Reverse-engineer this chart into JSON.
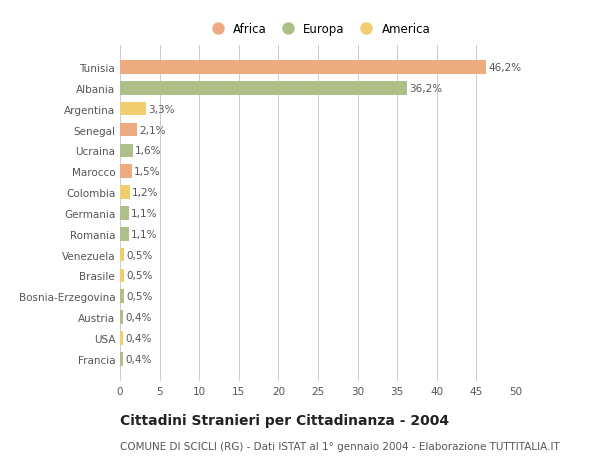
{
  "categories": [
    "Tunisia",
    "Albania",
    "Argentina",
    "Senegal",
    "Ucraina",
    "Marocco",
    "Colombia",
    "Germania",
    "Romania",
    "Venezuela",
    "Brasile",
    "Bosnia-Erzegovina",
    "Austria",
    "USA",
    "Francia"
  ],
  "values": [
    46.2,
    36.2,
    3.3,
    2.1,
    1.6,
    1.5,
    1.2,
    1.1,
    1.1,
    0.5,
    0.5,
    0.5,
    0.4,
    0.4,
    0.4
  ],
  "labels": [
    "46,2%",
    "36,2%",
    "3,3%",
    "2,1%",
    "1,6%",
    "1,5%",
    "1,2%",
    "1,1%",
    "1,1%",
    "0,5%",
    "0,5%",
    "0,5%",
    "0,4%",
    "0,4%",
    "0,4%"
  ],
  "colors": [
    "#EDAB80",
    "#AEBF8A",
    "#F0CE70",
    "#EDAB80",
    "#AEBF8A",
    "#EDAB80",
    "#F0CE70",
    "#AEBF8A",
    "#AEBF8A",
    "#F0CE70",
    "#F0CE70",
    "#AEBF8A",
    "#AEBF8A",
    "#F0CE70",
    "#AEBF8A"
  ],
  "legend_labels": [
    "Africa",
    "Europa",
    "America"
  ],
  "legend_colors": [
    "#EDAB80",
    "#AEBF8A",
    "#F0CE70"
  ],
  "title": "Cittadini Stranieri per Cittadinanza - 2004",
  "subtitle": "COMUNE DI SCICLI (RG) - Dati ISTAT al 1° gennaio 2004 - Elaborazione TUTTITALIA.IT",
  "xlim": [
    0,
    50
  ],
  "xticks": [
    0,
    5,
    10,
    15,
    20,
    25,
    30,
    35,
    40,
    45,
    50
  ],
  "background_color": "#FFFFFF",
  "grid_color": "#CCCCCC",
  "bar_height": 0.65,
  "title_fontsize": 10,
  "subtitle_fontsize": 7.5,
  "label_fontsize": 7.5,
  "tick_fontsize": 7.5,
  "legend_fontsize": 8.5,
  "text_color": "#555555",
  "title_color": "#222222"
}
